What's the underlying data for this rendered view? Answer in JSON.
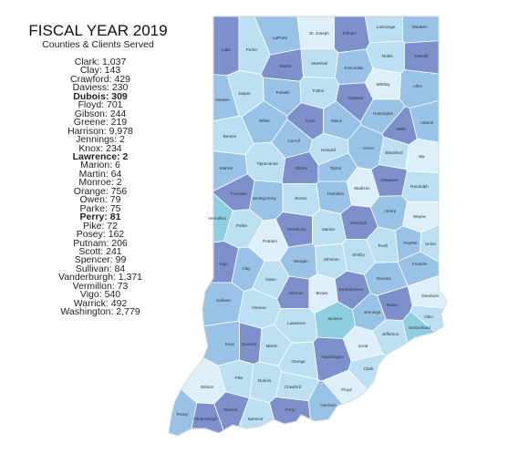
{
  "header": {
    "title": "FISCAL YEAR 2019",
    "subtitle": "Counties & Clients Served"
  },
  "client_list": [
    "Clark: 1,037",
    "Clay: 143",
    "Crawford: 429",
    "Daviess: 230",
    "Dubois: 309",
    "Floyd: 701",
    "Gibson: 244",
    "Greene: 219",
    "Harrison: 9,978",
    "Jennings: 2",
    "Knox: 234",
    "Lawrence: 2",
    "Marion: 6",
    "Martin: 64",
    "Monroe: 2",
    "Orange: 756",
    "Owen: 79",
    "Parke: 75",
    "Perry: 81",
    "Pike: 72",
    "Posey: 162",
    "Putnam: 206",
    "Scott: 241",
    "Spencer: 99",
    "Sullivan: 84",
    "Vanderburgh: 1,371",
    "Vermillon: 73",
    "Vigo: 540",
    "Warrick: 492",
    "Washington: 2,779"
  ],
  "map": {
    "counties": [
      "Lake",
      "Porter",
      "LaPorte",
      "St. Joseph",
      "Elkhart",
      "LaGrange",
      "Steuben",
      "Noble",
      "DeKalb",
      "Starke",
      "Marshall",
      "Kosciusko",
      "Whitley",
      "Allen",
      "Jasper",
      "Newton",
      "Pulaski",
      "Fulton",
      "Wabash",
      "Huntington",
      "Wells",
      "Adams",
      "Benton",
      "White",
      "Cass",
      "Miami",
      "Carroll",
      "Howard",
      "Grant",
      "Blackford",
      "Jay",
      "Warren",
      "Tippecanoe",
      "Clinton",
      "Tipton",
      "Madison",
      "Delaware",
      "Randolph",
      "Fountain",
      "Montgomery",
      "Boone",
      "Hamilton",
      "Vermillion",
      "Parke",
      "Putnam",
      "Hendricks",
      "Marion",
      "Hancock",
      "Henry",
      "Wayne",
      "Vigo",
      "Clay",
      "Owen",
      "Morgan",
      "Johnson",
      "Shelby",
      "Rush",
      "Fayette",
      "Union",
      "Franklin",
      "Sullivan",
      "Greene",
      "Monroe",
      "Brown",
      "Bartholomew",
      "Decatur",
      "Ripley",
      "Dearborn",
      "Jennings",
      "Ohio",
      "Switzerland",
      "Jackson",
      "Lawrence",
      "Knox",
      "Daviess",
      "Martin",
      "Jefferson",
      "Scott",
      "Washington",
      "Orange",
      "Clark",
      "Dubois",
      "Pike",
      "Gibson",
      "Floyd",
      "Harrison",
      "Crawford",
      "Perry",
      "Spencer",
      "Warrick",
      "Vanderburgh",
      "Posey"
    ]
  }
}
